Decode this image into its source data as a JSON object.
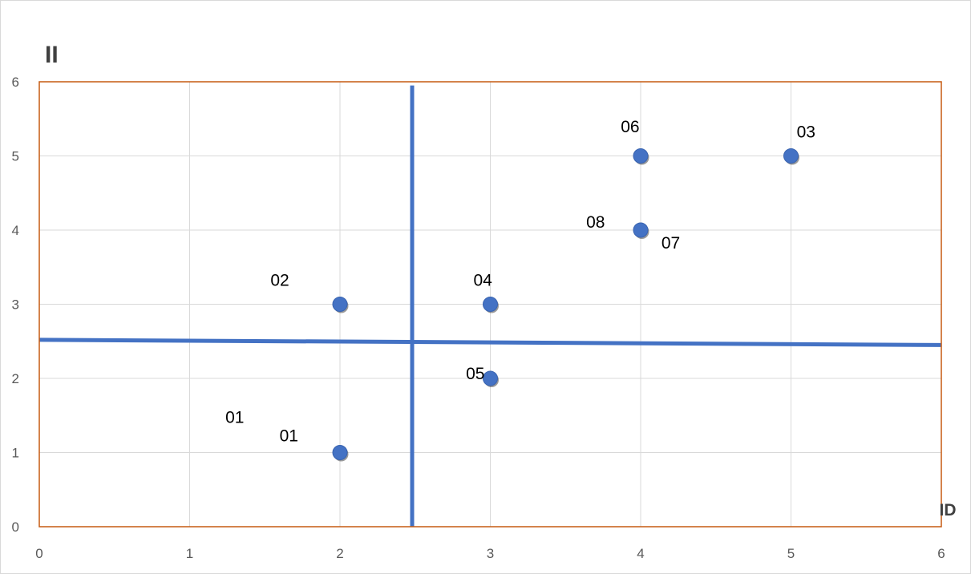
{
  "chart_data": {
    "type": "scatter",
    "title": "",
    "xlabel": "ID",
    "ylabel": "II",
    "xlim": [
      0,
      6
    ],
    "ylim": [
      0,
      6
    ],
    "xticks": [
      "0",
      "1",
      "2",
      "3",
      "4",
      "5",
      "6"
    ],
    "yticks": [
      "0",
      "1",
      "2",
      "3",
      "4",
      "5",
      "6"
    ],
    "grid": true,
    "legend": "none",
    "points": [
      {
        "x": 2,
        "y": 1
      },
      {
        "x": 2,
        "y": 3
      },
      {
        "x": 3,
        "y": 3
      },
      {
        "x": 3,
        "y": 2
      },
      {
        "x": 4,
        "y": 5
      },
      {
        "x": 5,
        "y": 5
      },
      {
        "x": 4,
        "y": 4
      }
    ],
    "point_labels": [
      {
        "text": "01",
        "x": 1.3,
        "y": 1.4
      },
      {
        "text": "01",
        "x": 1.66,
        "y": 1.15
      },
      {
        "text": "02",
        "x": 1.6,
        "y": 3.25
      },
      {
        "text": "04",
        "x": 2.95,
        "y": 3.25
      },
      {
        "text": "05",
        "x": 2.9,
        "y": 1.99
      },
      {
        "text": "06",
        "x": 3.93,
        "y": 5.32
      },
      {
        "text": "03",
        "x": 5.1,
        "y": 5.25
      },
      {
        "text": "08",
        "x": 3.7,
        "y": 4.03
      },
      {
        "text": "07",
        "x": 4.2,
        "y": 3.75
      }
    ],
    "reference_lines": [
      {
        "orientation": "vertical",
        "x": 2.48,
        "y_range": [
          0,
          5.95
        ]
      },
      {
        "orientation": "horizontal",
        "from": [
          0,
          2.52
        ],
        "to": [
          6,
          2.45
        ]
      }
    ],
    "colors": {
      "marker": "#4472c4",
      "reference_line": "#4472c4",
      "plot_border": "#c55a11",
      "grid": "#d9d9d9",
      "tick_text": "#595959"
    }
  }
}
